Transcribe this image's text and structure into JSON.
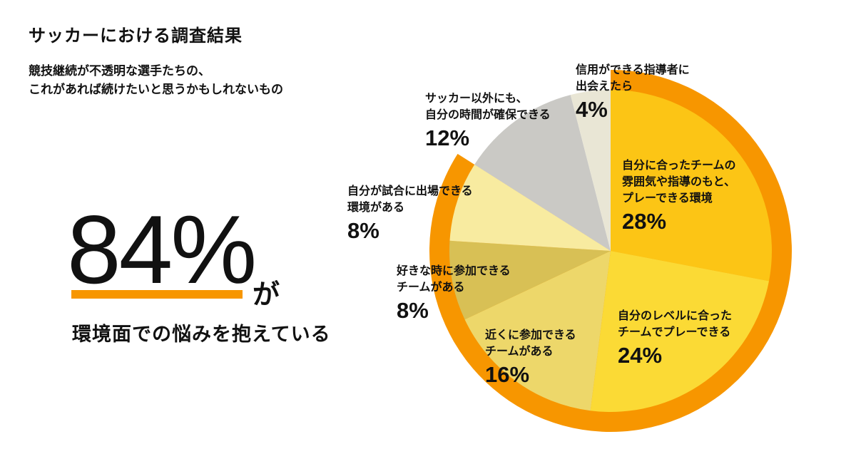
{
  "header": {
    "title": "サッカーにおける調査結果",
    "subtitle_lines": [
      "競技継続が不透明な選手たちの、",
      "これがあれば続けたいと思うかもしれないもの"
    ]
  },
  "highlight": {
    "value": "84%",
    "particle": "が",
    "tagline": "環境面での悩みを抱えている"
  },
  "colors": {
    "accent_orange": "#F79600",
    "text": "#111111"
  },
  "chart_data": {
    "type": "pie",
    "title": "",
    "start_angle_deg": 0,
    "direction": "clockwise",
    "highlighted_group_total": 84,
    "slices": [
      {
        "lines": [
          "自分に合ったチームの",
          "雰囲気や指導のもと、",
          "プレーできる環境"
        ],
        "value": 28,
        "label": "28%",
        "color": "#FCC515",
        "highlighted": true
      },
      {
        "lines": [
          "自分のレベルに合った",
          "チームでプレーできる"
        ],
        "value": 24,
        "label": "24%",
        "color": "#FBDA35",
        "highlighted": true
      },
      {
        "lines": [
          "近くに参加できる",
          "チームがある"
        ],
        "value": 16,
        "label": "16%",
        "color": "#EDD76A",
        "highlighted": true
      },
      {
        "lines": [
          "好きな時に参加できる",
          "チームがある"
        ],
        "value": 8,
        "label": "8%",
        "color": "#D8C055",
        "highlighted": true
      },
      {
        "lines": [
          "自分が試合に出場できる",
          "環境がある"
        ],
        "value": 8,
        "label": "8%",
        "color": "#F8EBA0",
        "highlighted": true
      },
      {
        "lines": [
          "サッカー以外にも、",
          "自分の時間が確保できる"
        ],
        "value": 12,
        "label": "12%",
        "color": "#CAC9C5",
        "highlighted": false
      },
      {
        "lines": [
          "信用ができる指導者に",
          "出会えたら"
        ],
        "value": 4,
        "label": "4%",
        "color": "#E9E6D5",
        "highlighted": false
      }
    ]
  }
}
